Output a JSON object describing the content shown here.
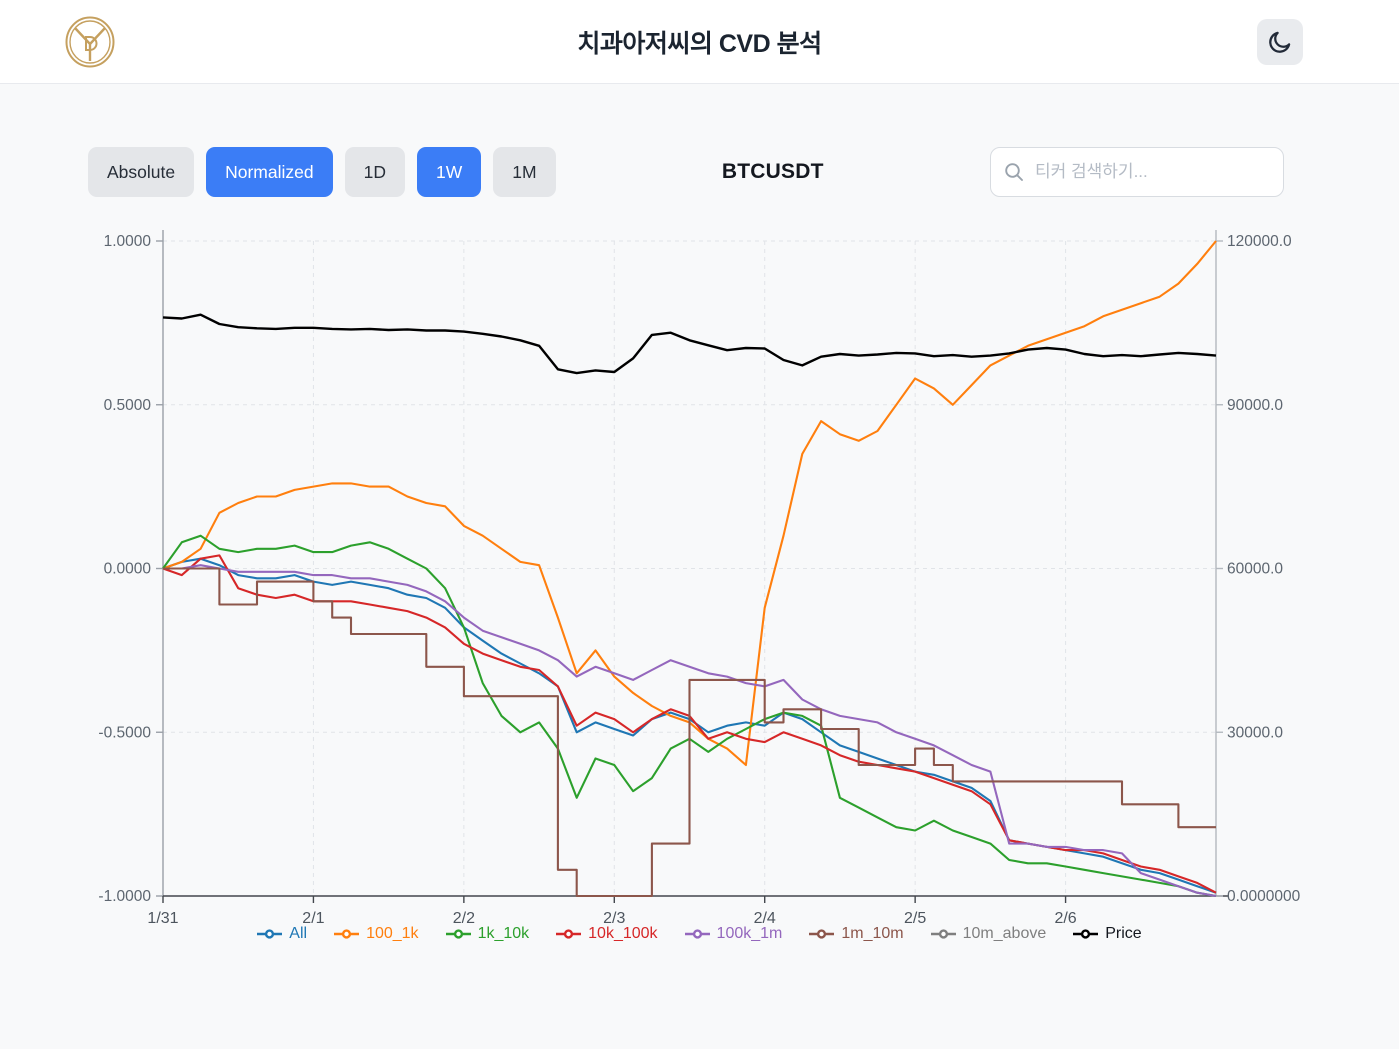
{
  "header": {
    "title": "치과아저씨의 CVD 분석",
    "logo_monogram": "YD",
    "theme_icon": "moon"
  },
  "toolbar": {
    "buttons": [
      {
        "label": "Absolute",
        "active": false
      },
      {
        "label": "Normalized",
        "active": true
      },
      {
        "label": "1D",
        "active": false
      },
      {
        "label": "1W",
        "active": true
      },
      {
        "label": "1M",
        "active": false
      }
    ],
    "symbol": "BTCUSDT",
    "search_placeholder": "티커 검색하기...",
    "search_value": ""
  },
  "colors": {
    "accent_blue": "#3b7df6",
    "button_gray": "#e4e6e9",
    "page_bg": "#f8f9fa",
    "header_bg": "#ffffff",
    "logo_gold": "#c5a05f",
    "grid": "#e1e4e8",
    "axis_left": "#9aa0a8",
    "axis_right": "#b3b8bf",
    "axis_bottom": "#42464c",
    "tick_label": "#5d6670",
    "x_label": "#4d555e"
  },
  "chart_data": {
    "type": "line",
    "title": "",
    "x_unit": "days since 1/31",
    "x_ticks": [
      {
        "pos": 0,
        "label": "1/31"
      },
      {
        "pos": 1,
        "label": "2/1"
      },
      {
        "pos": 2,
        "label": "2/2"
      },
      {
        "pos": 3,
        "label": "2/3"
      },
      {
        "pos": 4,
        "label": "2/4"
      },
      {
        "pos": 5,
        "label": "2/5"
      },
      {
        "pos": 6,
        "label": "2/6"
      }
    ],
    "left_axis": {
      "range": [
        -1,
        1
      ],
      "tick_values": [
        1.0,
        0.5,
        0.0,
        -0.5,
        -1.0
      ],
      "tick_labels": [
        "1.0000",
        "0.5000",
        "0.0000",
        "-0.5000",
        "-1.0000"
      ]
    },
    "right_axis": {
      "range": [
        0,
        120000
      ],
      "tick_values": [
        120000,
        90000,
        60000,
        30000,
        0
      ],
      "tick_labels": [
        "120000.0",
        "90000.0",
        "60000.0",
        "30000.0",
        "0.0000000"
      ]
    },
    "grid": "dashed",
    "legend_position": "bottom",
    "x": [
      0,
      0.125,
      0.25,
      0.375,
      0.5,
      0.625,
      0.75,
      0.875,
      1,
      1.125,
      1.25,
      1.375,
      1.5,
      1.625,
      1.75,
      1.875,
      2,
      2.125,
      2.25,
      2.375,
      2.5,
      2.625,
      2.75,
      2.875,
      3,
      3.125,
      3.25,
      3.375,
      3.5,
      3.625,
      3.75,
      3.875,
      4,
      4.125,
      4.25,
      4.375,
      4.5,
      4.625,
      4.75,
      4.875,
      5,
      5.125,
      5.25,
      5.375,
      5.5,
      5.625,
      5.75,
      5.875,
      6,
      6.125,
      6.25,
      6.375,
      6.5,
      6.625,
      6.75,
      6.875,
      7
    ],
    "series": [
      {
        "name": "All",
        "color": "#1f77b4",
        "axis": "left",
        "step": false,
        "visible": true,
        "values": [
          0.0,
          0.02,
          0.03,
          0.01,
          -0.02,
          -0.03,
          -0.03,
          -0.02,
          -0.04,
          -0.05,
          -0.04,
          -0.05,
          -0.06,
          -0.08,
          -0.09,
          -0.12,
          -0.18,
          -0.22,
          -0.26,
          -0.29,
          -0.32,
          -0.36,
          -0.5,
          -0.47,
          -0.49,
          -0.51,
          -0.46,
          -0.44,
          -0.46,
          -0.5,
          -0.48,
          -0.47,
          -0.48,
          -0.44,
          -0.46,
          -0.5,
          -0.54,
          -0.56,
          -0.58,
          -0.6,
          -0.62,
          -0.63,
          -0.65,
          -0.67,
          -0.71,
          -0.83,
          -0.84,
          -0.85,
          -0.86,
          -0.87,
          -0.88,
          -0.9,
          -0.92,
          -0.93,
          -0.95,
          -0.97,
          -0.99
        ]
      },
      {
        "name": "100_1k",
        "color": "#ff7f0e",
        "axis": "left",
        "step": false,
        "visible": true,
        "values": [
          0.0,
          0.02,
          0.06,
          0.17,
          0.2,
          0.22,
          0.22,
          0.24,
          0.25,
          0.26,
          0.26,
          0.25,
          0.25,
          0.22,
          0.2,
          0.19,
          0.13,
          0.1,
          0.06,
          0.02,
          0.01,
          -0.15,
          -0.32,
          -0.25,
          -0.33,
          -0.38,
          -0.42,
          -0.45,
          -0.47,
          -0.52,
          -0.55,
          -0.6,
          -0.12,
          0.1,
          0.35,
          0.45,
          0.41,
          0.39,
          0.42,
          0.5,
          0.58,
          0.55,
          0.5,
          0.56,
          0.62,
          0.65,
          0.68,
          0.7,
          0.72,
          0.74,
          0.77,
          0.79,
          0.81,
          0.83,
          0.87,
          0.93,
          1.0
        ]
      },
      {
        "name": "1k_10k",
        "color": "#2ca02c",
        "axis": "left",
        "step": false,
        "visible": true,
        "values": [
          0.0,
          0.08,
          0.1,
          0.06,
          0.05,
          0.06,
          0.06,
          0.07,
          0.05,
          0.05,
          0.07,
          0.08,
          0.06,
          0.03,
          0.0,
          -0.06,
          -0.18,
          -0.35,
          -0.45,
          -0.5,
          -0.47,
          -0.55,
          -0.7,
          -0.58,
          -0.6,
          -0.68,
          -0.64,
          -0.55,
          -0.52,
          -0.56,
          -0.52,
          -0.49,
          -0.46,
          -0.44,
          -0.45,
          -0.48,
          -0.7,
          -0.73,
          -0.76,
          -0.79,
          -0.8,
          -0.77,
          -0.8,
          -0.82,
          -0.84,
          -0.89,
          -0.9,
          -0.9,
          -0.91,
          -0.92,
          -0.93,
          -0.94,
          -0.95,
          -0.96,
          -0.97,
          -0.99,
          -1.0
        ]
      },
      {
        "name": "10k_100k",
        "color": "#d62728",
        "axis": "left",
        "step": false,
        "visible": true,
        "values": [
          0.0,
          -0.02,
          0.03,
          0.04,
          -0.06,
          -0.08,
          -0.09,
          -0.08,
          -0.1,
          -0.1,
          -0.1,
          -0.11,
          -0.12,
          -0.13,
          -0.15,
          -0.18,
          -0.23,
          -0.26,
          -0.28,
          -0.3,
          -0.31,
          -0.36,
          -0.48,
          -0.44,
          -0.46,
          -0.5,
          -0.46,
          -0.43,
          -0.45,
          -0.52,
          -0.5,
          -0.52,
          -0.53,
          -0.5,
          -0.52,
          -0.54,
          -0.57,
          -0.59,
          -0.6,
          -0.61,
          -0.62,
          -0.64,
          -0.66,
          -0.68,
          -0.72,
          -0.83,
          -0.84,
          -0.85,
          -0.86,
          -0.86,
          -0.87,
          -0.89,
          -0.91,
          -0.92,
          -0.94,
          -0.96,
          -0.99
        ]
      },
      {
        "name": "100k_1m",
        "color": "#9467bd",
        "axis": "left",
        "step": false,
        "visible": true,
        "values": [
          0.0,
          0.0,
          0.01,
          0.0,
          -0.01,
          -0.01,
          -0.01,
          -0.01,
          -0.02,
          -0.02,
          -0.03,
          -0.03,
          -0.04,
          -0.05,
          -0.07,
          -0.1,
          -0.15,
          -0.19,
          -0.21,
          -0.23,
          -0.25,
          -0.28,
          -0.33,
          -0.3,
          -0.32,
          -0.34,
          -0.31,
          -0.28,
          -0.3,
          -0.32,
          -0.33,
          -0.35,
          -0.36,
          -0.34,
          -0.4,
          -0.43,
          -0.45,
          -0.46,
          -0.47,
          -0.5,
          -0.52,
          -0.54,
          -0.57,
          -0.6,
          -0.62,
          -0.84,
          -0.84,
          -0.85,
          -0.85,
          -0.86,
          -0.86,
          -0.87,
          -0.93,
          -0.95,
          -0.97,
          -0.99,
          -1.0
        ]
      },
      {
        "name": "1m_10m",
        "color": "#8c564b",
        "axis": "left",
        "step": true,
        "visible": true,
        "values": [
          0.0,
          0.0,
          0.0,
          -0.11,
          -0.11,
          -0.04,
          -0.04,
          -0.04,
          -0.1,
          -0.15,
          -0.2,
          -0.2,
          -0.2,
          -0.2,
          -0.3,
          -0.3,
          -0.39,
          -0.39,
          -0.39,
          -0.39,
          -0.39,
          -0.92,
          -1.0,
          -1.0,
          -1.0,
          -1.0,
          -0.84,
          -0.84,
          -0.34,
          -0.34,
          -0.34,
          -0.34,
          -0.47,
          -0.43,
          -0.43,
          -0.49,
          -0.49,
          -0.6,
          -0.6,
          -0.6,
          -0.55,
          -0.6,
          -0.65,
          -0.65,
          -0.65,
          -0.65,
          -0.65,
          -0.65,
          -0.65,
          -0.65,
          -0.65,
          -0.72,
          -0.72,
          -0.72,
          -0.79,
          -0.79,
          -0.79
        ]
      },
      {
        "name": "10m_above",
        "color": "#7f7f7f",
        "axis": "left",
        "step": false,
        "visible": false,
        "values": []
      },
      {
        "name": "Price",
        "color": "#000000",
        "axis": "right",
        "step": false,
        "visible": true,
        "values": [
          106000,
          105800,
          106500,
          104800,
          104200,
          104000,
          103900,
          104100,
          104100,
          103900,
          103800,
          103900,
          103700,
          103800,
          103600,
          103600,
          103400,
          103000,
          102500,
          101800,
          100800,
          96500,
          95800,
          96300,
          96000,
          98500,
          102800,
          103200,
          101800,
          100900,
          100000,
          100400,
          100300,
          98200,
          97200,
          98800,
          99300,
          99000,
          99200,
          99500,
          99400,
          98900,
          99100,
          98800,
          99000,
          99400,
          100100,
          100400,
          100100,
          99300,
          98900,
          99100,
          98900,
          99200,
          99500,
          99300,
          99000
        ]
      }
    ]
  }
}
